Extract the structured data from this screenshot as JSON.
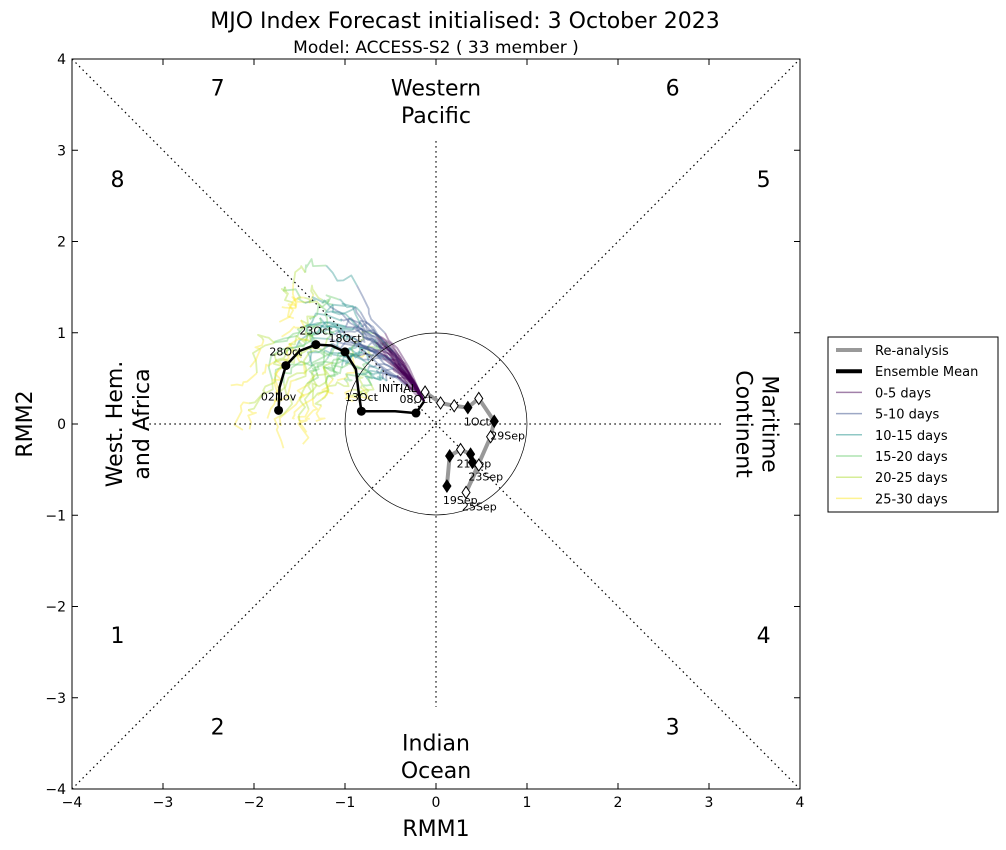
{
  "chart_data": {
    "type": "line",
    "title": "MJO Index Forecast initialised:  3  October 2023",
    "subtitle": "Model: ACCESS-S2 ( 33 member )",
    "xlabel": "RMM1",
    "ylabel": "RMM2",
    "xlim": [
      -4,
      4
    ],
    "ylim": [
      -4,
      4
    ],
    "x_ticks": [
      "−4",
      "−3",
      "−2",
      "−1",
      "0",
      "1",
      "2",
      "3",
      "4"
    ],
    "y_ticks": [
      "−4",
      "−3",
      "−2",
      "−1",
      "0",
      "1",
      "2",
      "3",
      "4"
    ],
    "phase_labels": [
      {
        "label": "1",
        "x": -3.5,
        "y": -2.4
      },
      {
        "label": "2",
        "x": -2.4,
        "y": -3.4
      },
      {
        "label": "3",
        "x": 2.6,
        "y": -3.4
      },
      {
        "label": "4",
        "x": 3.6,
        "y": -2.4
      },
      {
        "label": "5",
        "x": 3.6,
        "y": 2.6
      },
      {
        "label": "6",
        "x": 2.6,
        "y": 3.6
      },
      {
        "label": "7",
        "x": -2.4,
        "y": 3.6
      },
      {
        "label": "8",
        "x": -3.5,
        "y": 2.6
      }
    ],
    "regions": {
      "top": [
        "Western",
        "Pacific"
      ],
      "bottom": [
        "Indian",
        "Ocean"
      ],
      "left": [
        "West. Hem.",
        "and Africa"
      ],
      "right": [
        "Maritime",
        "Continent"
      ]
    },
    "reanalysis": {
      "name": "Re-analysis",
      "color": "#999999",
      "points": [
        {
          "x": 0.12,
          "y": -0.68,
          "label": "19Sep",
          "filled": true
        },
        {
          "x": 0.15,
          "y": -0.35,
          "label": "",
          "filled": true
        },
        {
          "x": 0.27,
          "y": -0.28,
          "label": "21Sep",
          "filled": false
        },
        {
          "x": 0.38,
          "y": -0.33,
          "label": "",
          "filled": true
        },
        {
          "x": 0.4,
          "y": -0.42,
          "label": "23Sep",
          "filled": true
        },
        {
          "x": 0.47,
          "y": -0.45,
          "label": "",
          "filled": false
        },
        {
          "x": 0.33,
          "y": -0.75,
          "label": "25Sep",
          "filled": false
        },
        {
          "x": 0.6,
          "y": -0.14,
          "label": "",
          "filled": false
        },
        {
          "x": 0.64,
          "y": 0.03,
          "label": "29Sep",
          "filled": true
        },
        {
          "x": 0.47,
          "y": 0.28,
          "label": "",
          "filled": false
        },
        {
          "x": 0.35,
          "y": 0.18,
          "label": "1Oct",
          "filled": true
        },
        {
          "x": 0.2,
          "y": 0.2,
          "label": "",
          "filled": false
        },
        {
          "x": 0.05,
          "y": 0.23,
          "label": "",
          "filled": false
        },
        {
          "x": -0.12,
          "y": 0.35,
          "label": "",
          "filled": false
        }
      ]
    },
    "ensemble_mean": {
      "name": "Ensemble Mean",
      "color": "#000000",
      "path": [
        [
          -0.13,
          0.25
        ],
        [
          -0.22,
          0.12
        ],
        [
          -0.45,
          0.14
        ],
        [
          -0.65,
          0.14
        ],
        [
          -0.82,
          0.14
        ],
        [
          -0.85,
          0.35
        ],
        [
          -0.88,
          0.6
        ],
        [
          -1.0,
          0.79
        ],
        [
          -1.15,
          0.86
        ],
        [
          -1.32,
          0.87
        ],
        [
          -1.5,
          0.8
        ],
        [
          -1.65,
          0.64
        ],
        [
          -1.72,
          0.4
        ],
        [
          -1.73,
          0.15
        ]
      ],
      "markers": [
        {
          "x": -0.22,
          "y": 0.12,
          "label": "08Oct"
        },
        {
          "x": -0.82,
          "y": 0.14,
          "label": "13Oct"
        },
        {
          "x": -1.0,
          "y": 0.79,
          "label": "18Oct"
        },
        {
          "x": -1.32,
          "y": 0.87,
          "label": "23Oct"
        },
        {
          "x": -1.65,
          "y": 0.64,
          "label": "28Oct"
        },
        {
          "x": -1.73,
          "y": 0.15,
          "label": "02Nov"
        }
      ],
      "initial_label": "INITIAL"
    },
    "legend": {
      "placement": "right",
      "entries": [
        {
          "label": "Re-analysis",
          "color": "#999999",
          "width": 4
        },
        {
          "label": "Ensemble Mean",
          "color": "#000000",
          "width": 4
        },
        {
          "label": "0-5 days",
          "color": "#440154",
          "width": 1.5
        },
        {
          "label": "5-10 days",
          "color": "#3b528b",
          "width": 1.5
        },
        {
          "label": "10-15 days",
          "color": "#21918c",
          "width": 1.5
        },
        {
          "label": "15-20 days",
          "color": "#5ec962",
          "width": 1.5
        },
        {
          "label": "20-25 days",
          "color": "#addc30",
          "width": 1.5
        },
        {
          "label": "25-30 days",
          "color": "#fde725",
          "width": 1.5
        }
      ]
    },
    "members": 33,
    "grid": false
  }
}
